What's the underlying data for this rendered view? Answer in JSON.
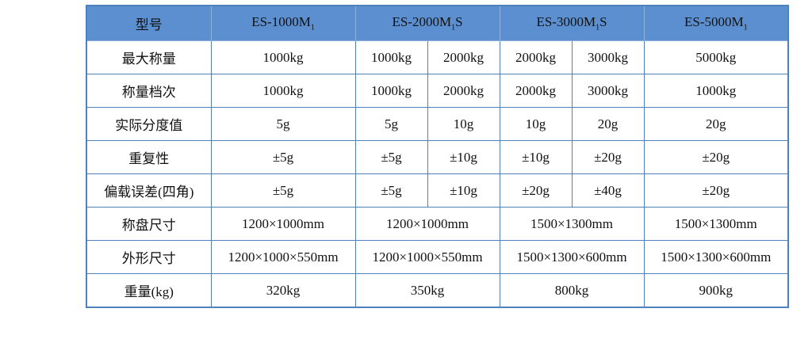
{
  "table": {
    "header": {
      "label": "型号",
      "models": [
        [
          "ES-1000M",
          "1",
          ""
        ],
        [
          "ES-2000M",
          "1",
          "S"
        ],
        [
          "ES-3000M",
          "1",
          "S"
        ],
        [
          "ES-5000M",
          "1",
          ""
        ]
      ]
    },
    "rows": [
      {
        "label": "最大称量",
        "cells": [
          "1000kg",
          [
            "1000kg",
            "2000kg"
          ],
          [
            "2000kg",
            "3000kg"
          ],
          "5000kg"
        ]
      },
      {
        "label": "称量档次",
        "cells": [
          "1000kg",
          [
            "1000kg",
            "2000kg"
          ],
          [
            "2000kg",
            "3000kg"
          ],
          "1000kg"
        ]
      },
      {
        "label": "实际分度值",
        "cells": [
          "5g",
          [
            "5g",
            "10g"
          ],
          [
            "10g",
            "20g"
          ],
          "20g"
        ]
      },
      {
        "label": "重复性",
        "cells": [
          "±5g",
          [
            "±5g",
            "±10g"
          ],
          [
            "±10g",
            "±20g"
          ],
          "±20g"
        ]
      },
      {
        "label": "偏载误差(四角)",
        "cells": [
          "±5g",
          [
            "±5g",
            "±10g"
          ],
          [
            "±20g",
            "±40g"
          ],
          "±20g"
        ]
      },
      {
        "label": "称盘尺寸",
        "cells": [
          "1200×1000mm",
          "1200×1000mm",
          "1500×1300mm",
          "1500×1300mm"
        ]
      },
      {
        "label": "外形尺寸",
        "cells": [
          "1200×1000×550mm",
          "1200×1000×550mm",
          "1500×1300×600mm",
          "1500×1300×600mm"
        ]
      },
      {
        "label": "重量(kg)",
        "cells": [
          "320kg",
          "350kg",
          "800kg",
          "900kg"
        ]
      }
    ]
  }
}
